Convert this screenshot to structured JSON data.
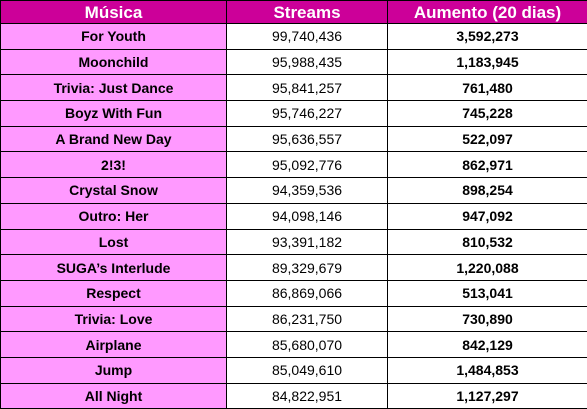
{
  "colors": {
    "header_bg": "#cc0099",
    "header_text": "#ffffff",
    "song_cell_bg": "#ff99ff",
    "data_cell_bg": "#ffffff",
    "grid": "#000000"
  },
  "table": {
    "headers": [
      "Música",
      "Streams",
      "Aumento (20 dias)"
    ],
    "rows": [
      {
        "song": "For Youth",
        "streams": "99,740,436",
        "increase": "3,592,273"
      },
      {
        "song": "Moonchild",
        "streams": "95,988,435",
        "increase": "1,183,945"
      },
      {
        "song": "Trivia: Just Dance",
        "streams": "95,841,257",
        "increase": "761,480"
      },
      {
        "song": "Boyz With Fun",
        "streams": "95,746,227",
        "increase": "745,228"
      },
      {
        "song": "A Brand New Day",
        "streams": "95,636,557",
        "increase": "522,097"
      },
      {
        "song": "2!3!",
        "streams": "95,092,776",
        "increase": "862,971"
      },
      {
        "song": "Crystal Snow",
        "streams": "94,359,536",
        "increase": "898,254"
      },
      {
        "song": "Outro: Her",
        "streams": "94,098,146",
        "increase": "947,092"
      },
      {
        "song": "Lost",
        "streams": "93,391,182",
        "increase": "810,532"
      },
      {
        "song": "SUGA’s Interlude",
        "streams": "89,329,679",
        "increase": "1,220,088"
      },
      {
        "song": "Respect",
        "streams": "86,869,066",
        "increase": "513,041"
      },
      {
        "song": "Trivia: Love",
        "streams": "86,231,750",
        "increase": "730,890"
      },
      {
        "song": "Airplane",
        "streams": "85,680,070",
        "increase": "842,129"
      },
      {
        "song": "Jump",
        "streams": "85,049,610",
        "increase": "1,484,853"
      },
      {
        "song": "All Night",
        "streams": "84,822,951",
        "increase": "1,127,297"
      }
    ]
  }
}
